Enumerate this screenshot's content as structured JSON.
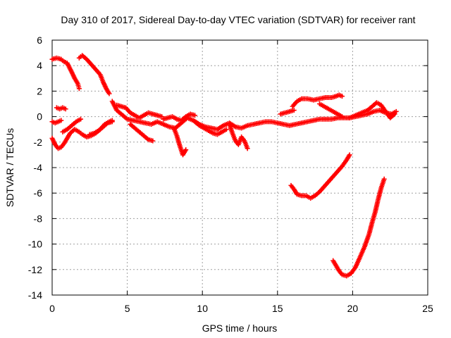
{
  "chart_data": {
    "type": "scatter",
    "title": "Day 310 of 2017, Sidereal Day-to-day VTEC variation (SDTVAR) for receiver rant",
    "xlabel": "GPS time / hours",
    "ylabel": "SDTVAR / TECUs",
    "xlim": [
      0,
      25
    ],
    "ylim": [
      -14,
      6
    ],
    "xticks": [
      0,
      5,
      10,
      15,
      20,
      25
    ],
    "yticks": [
      -14,
      -12,
      -10,
      -8,
      -6,
      -4,
      -2,
      0,
      2,
      4,
      6
    ],
    "grid": true,
    "marker": "plus",
    "series_color": "#ff0000",
    "series": [
      {
        "x": [
          0.0,
          0.3,
          0.6,
          0.8,
          1.0,
          1.3,
          1.5,
          1.7,
          1.8
        ],
        "y": [
          4.5,
          4.6,
          4.5,
          4.3,
          4.2,
          3.5,
          3.0,
          2.6,
          2.2
        ]
      },
      {
        "x": [
          1.8,
          2.0,
          2.3,
          2.6,
          2.9,
          3.2,
          3.4,
          3.6,
          3.8
        ],
        "y": [
          4.6,
          4.8,
          4.5,
          4.1,
          3.7,
          3.3,
          2.7,
          2.2,
          1.8
        ]
      },
      {
        "x": [
          0.0,
          0.2,
          0.4,
          0.6,
          0.8,
          1.0,
          1.2,
          1.5,
          1.8,
          2.0,
          2.3,
          2.6,
          2.9,
          3.2,
          3.5,
          3.8,
          4.0
        ],
        "y": [
          -1.7,
          -2.2,
          -2.5,
          -2.4,
          -2.1,
          -1.7,
          -1.3,
          -1.0,
          -1.2,
          -1.4,
          -1.6,
          -1.5,
          -1.3,
          -1.0,
          -0.6,
          -0.4,
          -0.3
        ]
      },
      {
        "x": [
          0.0,
          0.2,
          0.4,
          0.6
        ],
        "y": [
          -0.4,
          -0.5,
          -0.4,
          -0.3
        ]
      },
      {
        "x": [
          0.3,
          0.5,
          0.7,
          0.9
        ],
        "y": [
          0.7,
          0.6,
          0.7,
          0.6
        ]
      },
      {
        "x": [
          0.7,
          1.0,
          1.3,
          1.6,
          1.9
        ],
        "y": [
          -1.2,
          -1.0,
          -0.7,
          -0.4,
          -0.2
        ]
      },
      {
        "x": [
          2.5,
          2.8,
          3.1,
          3.4,
          3.7,
          4.0
        ],
        "y": [
          -1.4,
          -1.3,
          -1.1,
          -0.8,
          -0.5,
          -0.4
        ]
      },
      {
        "x": [
          4.0,
          4.3,
          4.6,
          5.0,
          5.4,
          5.8,
          6.2,
          6.6,
          7.0,
          7.4,
          7.8,
          8.2,
          8.6,
          9.0,
          9.4,
          9.8,
          10.2,
          10.6,
          11.0,
          11.4,
          11.8,
          12.2,
          12.6,
          13.0,
          13.4,
          13.8,
          14.2,
          14.6,
          15.0,
          15.4,
          15.8,
          16.2,
          16.6,
          17.0,
          17.4,
          17.8,
          18.2,
          18.6,
          19.0,
          19.4,
          19.8,
          20.2,
          20.6,
          21.0,
          21.4,
          21.8,
          22.2,
          22.6,
          22.9
        ],
        "y": [
          1.2,
          0.5,
          0.2,
          -0.2,
          -0.3,
          -0.4,
          -0.5,
          -0.6,
          -0.4,
          -0.6,
          -0.8,
          -0.9,
          -0.5,
          -0.1,
          -0.3,
          -0.6,
          -0.8,
          -0.9,
          -1.0,
          -0.7,
          -0.5,
          -0.8,
          -0.9,
          -0.7,
          -0.6,
          -0.5,
          -0.4,
          -0.4,
          -0.5,
          -0.6,
          -0.7,
          -0.6,
          -0.5,
          -0.4,
          -0.3,
          -0.2,
          -0.2,
          -0.2,
          -0.1,
          -0.1,
          -0.1,
          0.0,
          0.1,
          0.2,
          0.4,
          0.5,
          0.3,
          0.2,
          0.4
        ]
      },
      {
        "x": [
          4.3,
          4.6,
          4.9,
          5.2,
          5.5,
          5.8,
          6.1,
          6.4,
          6.7,
          7.0,
          7.3
        ],
        "y": [
          0.9,
          0.8,
          0.7,
          0.3,
          0.1,
          -0.1,
          0.1,
          0.3,
          0.2,
          0.1,
          0.0
        ]
      },
      {
        "x": [
          7.4,
          7.7,
          8.0,
          8.3,
          8.6,
          8.9,
          9.2,
          9.5
        ],
        "y": [
          -0.2,
          -0.1,
          0.0,
          -0.2,
          -0.3,
          0.0,
          0.2,
          0.1
        ]
      },
      {
        "x": [
          5.2,
          5.5,
          5.8,
          6.1,
          6.4,
          6.7
        ],
        "y": [
          -0.6,
          -0.9,
          -1.2,
          -1.5,
          -1.8,
          -1.9
        ]
      },
      {
        "x": [
          8.1,
          8.3,
          8.5,
          8.7,
          8.9
        ],
        "y": [
          -0.9,
          -1.5,
          -2.3,
          -3.0,
          -2.6
        ]
      },
      {
        "x": [
          9.5,
          9.8,
          10.1,
          10.4,
          10.7,
          11.0,
          11.3,
          11.6
        ],
        "y": [
          -0.4,
          -0.7,
          -0.9,
          -1.1,
          -1.3,
          -1.4,
          -1.2,
          -1.0
        ]
      },
      {
        "x": [
          11.8,
          12.0,
          12.2,
          12.4,
          12.6,
          12.8,
          13.0
        ],
        "y": [
          -0.6,
          -1.3,
          -1.9,
          -2.2,
          -1.6,
          -1.9,
          -2.5
        ]
      },
      {
        "x": [
          15.2,
          15.5,
          15.8,
          16.1
        ],
        "y": [
          0.2,
          0.3,
          0.4,
          0.5
        ]
      },
      {
        "x": [
          16.0,
          16.3,
          16.6,
          17.0,
          17.4,
          17.8,
          18.2,
          18.6,
          18.9,
          19.1,
          19.3
        ],
        "y": [
          0.8,
          1.2,
          1.4,
          1.4,
          1.3,
          1.4,
          1.5,
          1.5,
          1.6,
          1.7,
          1.6
        ]
      },
      {
        "x": [
          17.8,
          18.1,
          18.4,
          18.7,
          19.0,
          19.3
        ],
        "y": [
          1.0,
          0.8,
          0.6,
          0.4,
          0.2,
          0.0
        ]
      },
      {
        "x": [
          19.8,
          20.2,
          20.6,
          21.0,
          21.3,
          21.6,
          21.9,
          22.2,
          22.5,
          22.8
        ],
        "y": [
          -0.1,
          0.1,
          0.3,
          0.5,
          0.8,
          1.1,
          0.9,
          0.4,
          -0.1,
          0.2
        ]
      },
      {
        "x": [
          15.9,
          16.1,
          16.3,
          16.6,
          16.9,
          17.2,
          17.5,
          17.8,
          18.1,
          18.4,
          18.7,
          19.0,
          19.3,
          19.6,
          19.8
        ],
        "y": [
          -5.4,
          -5.7,
          -6.1,
          -6.2,
          -6.2,
          -6.4,
          -6.2,
          -5.9,
          -5.5,
          -5.1,
          -4.7,
          -4.3,
          -3.9,
          -3.4,
          -3.0
        ]
      },
      {
        "x": [
          18.7,
          18.9,
          19.1,
          19.3,
          19.6,
          19.9,
          20.2,
          20.5,
          20.8,
          21.1,
          21.3,
          21.5,
          21.7,
          21.9,
          22.1
        ],
        "y": [
          -11.3,
          -11.7,
          -12.1,
          -12.4,
          -12.5,
          -12.3,
          -11.8,
          -11.0,
          -10.2,
          -9.2,
          -8.3,
          -7.5,
          -6.5,
          -5.6,
          -4.9
        ]
      }
    ]
  }
}
